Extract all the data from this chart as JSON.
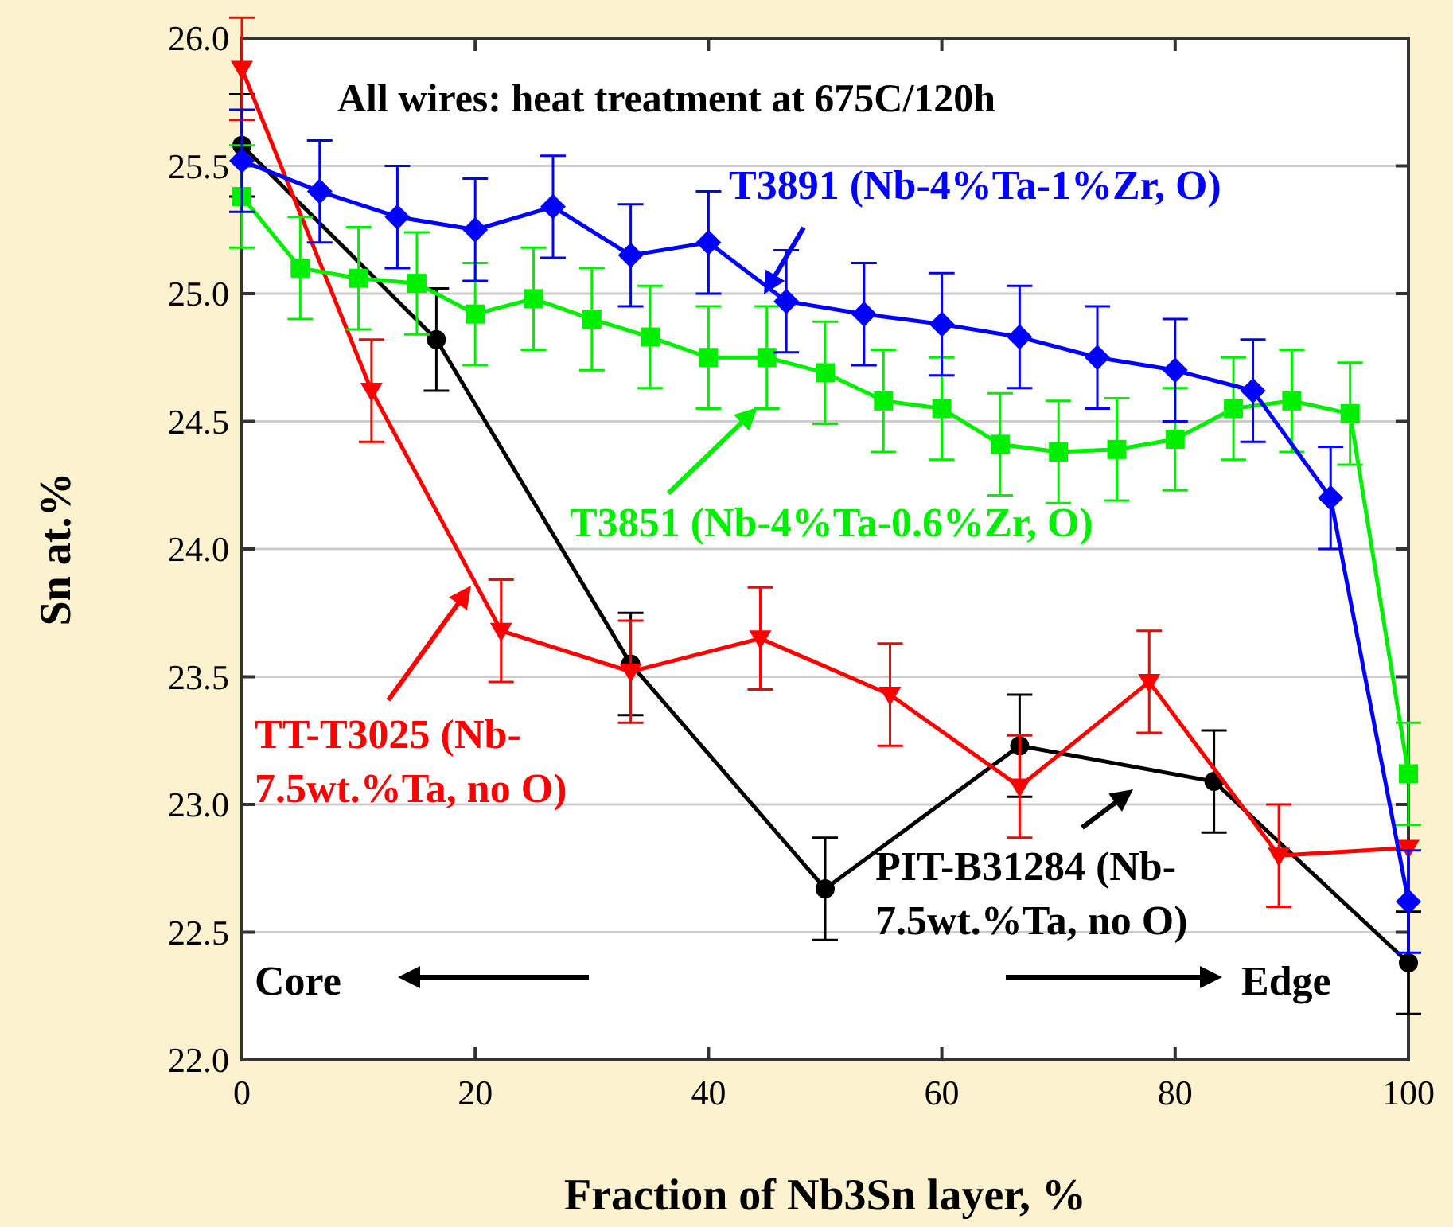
{
  "chart_data": {
    "type": "line",
    "title": "All wires: heat treatment at 675C/120h",
    "xlabel": "Fraction of Nb3Sn layer, %",
    "ylabel": "Sn at.%",
    "xlim": [
      0,
      100
    ],
    "xticks": [
      0,
      20,
      40,
      60,
      80,
      100
    ],
    "ylim": [
      22,
      26
    ],
    "yticks": [
      {
        "value": 22,
        "label": "22.0"
      },
      {
        "value": 22.5,
        "label": "22.5"
      },
      {
        "value": 23,
        "label": "23.0"
      },
      {
        "value": 23.5,
        "label": "23.5"
      },
      {
        "value": 24,
        "label": "24.0"
      },
      {
        "value": 24.5,
        "label": "24.5"
      },
      {
        "value": 25,
        "label": "25.0"
      },
      {
        "value": 25.5,
        "label": "25.5"
      },
      {
        "value": 26,
        "label": "26.0"
      }
    ],
    "grid": "y",
    "legend": "right",
    "series": [
      {
        "name": "T3891 (Nb-4%Ta-1%Zr, O)",
        "color": "#0000ff",
        "marker": "diamond",
        "x": [
          0,
          6.67,
          13.33,
          20,
          26.67,
          33.33,
          40,
          46.67,
          53.33,
          60,
          66.67,
          73.33,
          80,
          86.67,
          93.33,
          100
        ],
        "values": [
          25.52,
          25.4,
          25.3,
          25.25,
          25.34,
          25.15,
          25.2,
          24.97,
          24.92,
          24.88,
          24.83,
          24.75,
          24.7,
          24.62,
          24.2,
          22.62
        ],
        "errors": [
          0.2,
          0.2,
          0.2,
          0.2,
          0.2,
          0.2,
          0.2,
          0.2,
          0.2,
          0.2,
          0.2,
          0.2,
          0.2,
          0.2,
          0.2,
          0.2
        ]
      },
      {
        "name": "T3851 (Nb-4%Ta-0.6%Zr, O)",
        "color": "#00ee00",
        "marker": "square",
        "x": [
          0,
          5,
          10,
          15,
          20,
          25,
          30,
          35,
          40,
          45,
          50,
          55,
          60,
          65,
          70,
          75,
          80,
          85,
          90,
          95,
          100
        ],
        "values": [
          25.38,
          25.1,
          25.06,
          25.04,
          24.92,
          24.98,
          24.9,
          24.83,
          24.75,
          24.75,
          24.69,
          24.58,
          24.55,
          24.41,
          24.38,
          24.39,
          24.43,
          24.55,
          24.58,
          24.53,
          23.12
        ],
        "errors": [
          0.2,
          0.2,
          0.2,
          0.2,
          0.2,
          0.2,
          0.2,
          0.2,
          0.2,
          0.2,
          0.2,
          0.2,
          0.2,
          0.2,
          0.2,
          0.2,
          0.2,
          0.2,
          0.2,
          0.2,
          0.2
        ]
      },
      {
        "name": "TT-T3025 (Nb-7.5wt.%Ta, no O)",
        "color": "#ff0000",
        "marker": "triangle",
        "x": [
          0,
          11.11,
          22.22,
          33.33,
          44.44,
          55.56,
          66.67,
          77.78,
          88.89,
          100
        ],
        "values": [
          25.88,
          24.62,
          23.68,
          23.52,
          23.65,
          23.43,
          23.07,
          23.48,
          22.8,
          22.83
        ],
        "errors": [
          0.2,
          0.2,
          0.2,
          0.2,
          0.2,
          0.2,
          0.2,
          0.2,
          0.2,
          null
        ]
      },
      {
        "name": "PIT-B31284 (Nb-7.5wt.%Ta, no O)",
        "color": "#000000",
        "marker": "circle",
        "x": [
          0,
          16.67,
          33.33,
          50,
          66.67,
          83.33,
          100
        ],
        "values": [
          25.58,
          24.82,
          23.55,
          22.67,
          23.23,
          23.09,
          22.38
        ],
        "errors": [
          0.2,
          0.2,
          0.2,
          0.2,
          0.2,
          0.2,
          0.2
        ]
      }
    ],
    "annotations": [
      "Core",
      "Edge"
    ]
  }
}
